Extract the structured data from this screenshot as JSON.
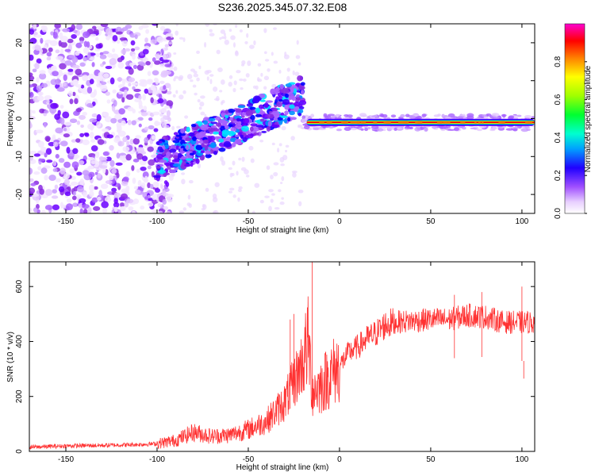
{
  "title": "S236.2025.345.07.32.E08",
  "chart_data": [
    {
      "type": "heatmap",
      "name": "spectrogram",
      "xlabel": "Height of straight line (km)",
      "ylabel": "Frequency (Hz)",
      "xlim": [
        -170,
        107
      ],
      "ylim": [
        -25,
        25
      ],
      "xticks": [
        -150,
        -100,
        -50,
        0,
        50,
        100
      ],
      "yticks": [
        -20,
        -10,
        0,
        10,
        20
      ],
      "colorbar": {
        "label": "Normalized spectral amplitude",
        "range": [
          0,
          1
        ],
        "ticks": [
          0.0,
          0.2,
          0.4,
          0.6,
          0.8
        ],
        "tick_labels": [
          "0.0",
          "0.2",
          "0.4",
          "0.6",
          "0.8"
        ],
        "colormap": [
          "#ffffff",
          "#d9b8f5",
          "#9a4dff",
          "#6a00ff",
          "#0000ff",
          "#00c8ff",
          "#00ff66",
          "#ffff00",
          "#ff8000",
          "#ff0000",
          "#ff00cc"
        ]
      },
      "features": [
        {
          "region": "noise",
          "x_range": [
            -170,
            -100
          ],
          "freq_range": [
            -25,
            25
          ],
          "amplitude": 0.15
        },
        {
          "region": "ramp",
          "x_range": [
            -100,
            -20
          ],
          "freq_start": -11,
          "freq_end": 6,
          "amplitude": 0.3
        },
        {
          "region": "carrier",
          "x_range": [
            -20,
            107
          ],
          "freq": -1,
          "amplitude": 1.0
        }
      ]
    },
    {
      "type": "line",
      "name": "snr",
      "xlabel": "Height of straight line (km)",
      "ylabel": "SNR (10 * v/v)",
      "xlim": [
        -170,
        107
      ],
      "ylim": [
        0,
        690
      ],
      "xticks": [
        -150,
        -100,
        -50,
        0,
        50,
        100
      ],
      "yticks": [
        0,
        200,
        400,
        600
      ],
      "color": "#ff3333",
      "series": [
        {
          "name": "SNR",
          "x": [
            -170,
            -150,
            -130,
            -110,
            -100,
            -90,
            -80,
            -70,
            -60,
            -50,
            -40,
            -30,
            -25,
            -20,
            -17,
            -15,
            -10,
            -5,
            0,
            5,
            10,
            15,
            20,
            25,
            30,
            40,
            50,
            60,
            70,
            80,
            90,
            100,
            107
          ],
          "values": [
            15,
            20,
            22,
            25,
            28,
            40,
            70,
            55,
            60,
            80,
            110,
            180,
            250,
            330,
            400,
            220,
            240,
            280,
            310,
            360,
            380,
            410,
            430,
            460,
            470,
            475,
            480,
            480,
            495,
            490,
            470,
            470,
            470
          ],
          "spikes": [
            {
              "x": -15,
              "y": 690
            },
            {
              "x": -25,
              "y": 500
            },
            {
              "x": -27,
              "y": 480
            },
            {
              "x": 100,
              "y": 600
            },
            {
              "x": 101,
              "y": 265
            },
            {
              "x": 78,
              "y": 580
            },
            {
              "x": 63,
              "y": 570
            }
          ]
        }
      ]
    }
  ]
}
